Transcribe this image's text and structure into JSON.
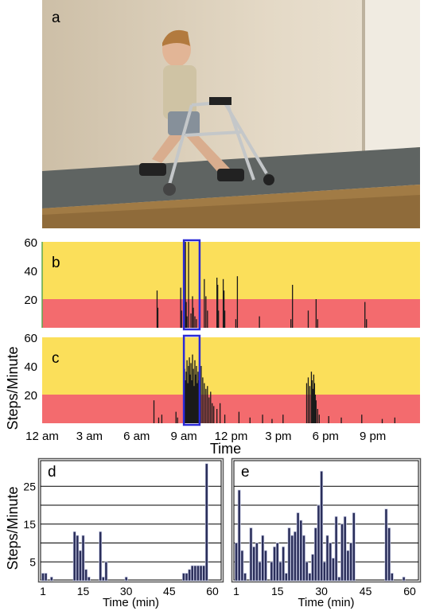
{
  "panels": {
    "a": {
      "label": "a"
    },
    "b": {
      "label": "b"
    },
    "c": {
      "label": "c"
    },
    "d": {
      "label": "d"
    },
    "e": {
      "label": "e"
    }
  },
  "colors": {
    "upper_band": "#fbdf5a",
    "lower_band": "#f36b6e",
    "bars": "#1a1a1a",
    "highlight_box": "#2b2bd8",
    "hist_bar": "#2a2e5a",
    "hist_bar_edge": "#c9cde6",
    "axis_line_b": "#5aa84f"
  },
  "labels": {
    "steps_per_minute": "Steps/Minute",
    "time": "Time",
    "time_min": "Time (min)"
  },
  "chart_data": [
    {
      "panel": "b",
      "type": "bar",
      "ylabel": "Steps/Minute",
      "ylim": [
        0,
        60
      ],
      "yticks": [
        20,
        40,
        60
      ],
      "x_range_hours": [
        0,
        24
      ],
      "threshold": 20,
      "highlight_hours": [
        9.0,
        10.0
      ],
      "hours": [
        7.3,
        7.35,
        8.8,
        8.85,
        9.1,
        9.15,
        9.2,
        9.3,
        9.45,
        9.55,
        9.6,
        9.7,
        9.8,
        10.3,
        10.4,
        10.5,
        11.1,
        11.15,
        11.2,
        11.5,
        11.55,
        11.6,
        12.3,
        12.4,
        13.8,
        15.8,
        15.9,
        16.9,
        17.4,
        17.5,
        20.5,
        20.6
      ],
      "values": [
        26,
        14,
        28,
        12,
        60,
        18,
        8,
        60,
        10,
        22,
        14,
        8,
        6,
        34,
        22,
        12,
        35,
        30,
        12,
        34,
        26,
        12,
        6,
        36,
        8,
        6,
        30,
        12,
        20,
        6,
        18,
        6
      ]
    },
    {
      "panel": "c",
      "type": "bar",
      "ylim": [
        0,
        60
      ],
      "yticks": [
        20,
        40,
        60
      ],
      "x_range_hours": [
        0,
        24
      ],
      "threshold": 20,
      "highlight_hours": [
        9.0,
        10.0
      ],
      "xticks": [
        "12 am",
        "3 am",
        "6 am",
        "9 am",
        "12 pm",
        "3 pm",
        "6 pm",
        "9 pm"
      ],
      "xlabel": "Time",
      "hours": [
        7.1,
        7.4,
        7.6,
        8.5,
        8.6,
        9.05,
        9.1,
        9.15,
        9.2,
        9.25,
        9.3,
        9.35,
        9.4,
        9.45,
        9.5,
        9.55,
        9.6,
        9.65,
        9.7,
        9.75,
        9.8,
        9.85,
        9.9,
        9.95,
        10.1,
        10.2,
        10.3,
        10.4,
        10.5,
        10.6,
        10.7,
        10.8,
        10.9,
        11.1,
        11.3,
        11.6,
        12.5,
        13.2,
        14.0,
        14.6,
        15.3,
        16.8,
        16.9,
        17.0,
        17.1,
        17.15,
        17.2,
        17.25,
        17.3,
        17.35,
        17.4,
        17.5,
        17.6,
        18.2,
        19.0,
        20.3,
        21.6,
        22.4
      ],
      "values": [
        16,
        4,
        6,
        8,
        4,
        38,
        30,
        36,
        44,
        28,
        40,
        46,
        34,
        42,
        30,
        48,
        38,
        26,
        44,
        34,
        40,
        28,
        36,
        30,
        40,
        32,
        28,
        24,
        26,
        18,
        22,
        14,
        12,
        10,
        14,
        6,
        8,
        4,
        6,
        3,
        6,
        28,
        32,
        26,
        36,
        30,
        24,
        34,
        28,
        20,
        16,
        10,
        6,
        5,
        4,
        6,
        3,
        4
      ]
    },
    {
      "panel": "d",
      "type": "bar",
      "ylabel": "Steps/Minute",
      "xlabel": "Time (min)",
      "xticks": [
        1,
        15,
        30,
        45,
        60
      ],
      "yticks": [
        5,
        15,
        25
      ],
      "ylim": [
        0,
        32
      ],
      "minutes": [
        1,
        2,
        4,
        12,
        13,
        14,
        15,
        16,
        17,
        21,
        22,
        23,
        30,
        50,
        51,
        52,
        53,
        54,
        55,
        56,
        57,
        58
      ],
      "values": [
        2,
        2,
        1,
        13,
        12,
        8,
        12,
        3,
        1,
        13,
        1,
        5,
        1,
        2,
        2,
        3,
        4,
        4,
        4,
        4,
        4,
        31
      ]
    },
    {
      "panel": "e",
      "type": "bar",
      "xlabel": "Time (min)",
      "xticks": [
        1,
        15,
        30,
        45,
        60
      ],
      "ylim": [
        0,
        32
      ],
      "minutes": [
        1,
        2,
        3,
        4,
        6,
        7,
        8,
        9,
        10,
        11,
        13,
        14,
        15,
        16,
        17,
        18,
        19,
        20,
        21,
        22,
        23,
        24,
        25,
        26,
        27,
        28,
        29,
        30,
        31,
        32,
        33,
        34,
        35,
        36,
        37,
        38,
        39,
        40,
        41,
        52,
        53,
        54,
        58
      ],
      "values": [
        10,
        24,
        8,
        2,
        14,
        9,
        10,
        5,
        12,
        8,
        5,
        9,
        10,
        5,
        9,
        2,
        14,
        12,
        13,
        18,
        16,
        12,
        5,
        2,
        7,
        14,
        20,
        29,
        5,
        12,
        10,
        6,
        17,
        1,
        15,
        17,
        8,
        10,
        18,
        19,
        14,
        2,
        1
      ]
    }
  ]
}
